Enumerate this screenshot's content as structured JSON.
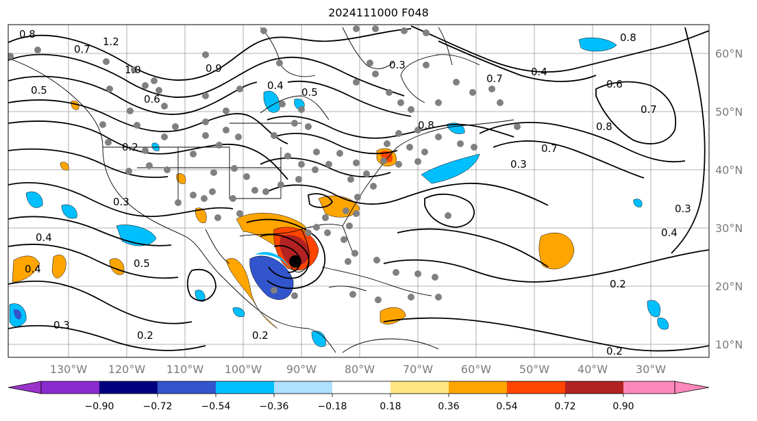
{
  "title": "2024111000 F048",
  "longitude_labels": [
    "130°W",
    "120°W",
    "110°W",
    "100°W",
    "90°W",
    "80°W",
    "70°W",
    "60°W",
    "50°W",
    "40°W",
    "30°W"
  ],
  "latitude_labels": [
    "60°N",
    "50°N",
    "40°N",
    "30°N",
    "20°N",
    "10°N"
  ],
  "colorbar": {
    "ticks": [
      "−0.90",
      "−0.72",
      "−0.54",
      "−0.36",
      "−0.18",
      "0.18",
      "0.36",
      "0.54",
      "0.72",
      "0.90"
    ],
    "colors": {
      "under": "#9a33cc",
      "bins": [
        "#8a2bd0",
        "#00007f",
        "#3355cc",
        "#00bfff",
        "#aee0ff",
        "#ffffff",
        "#ffe680",
        "#ffa500",
        "#ff4500",
        "#b22222"
      ],
      "over": "#ff88bb"
    }
  },
  "contour_labels": [
    "0.8",
    "1.2",
    "0.7",
    "1.0",
    "0.5",
    "0.9",
    "0.6",
    "0.4",
    "0.3",
    "0.2",
    "0.8",
    "0.7",
    "0.4",
    "0.6",
    "0.8",
    "0.7",
    "0.3",
    "0.5",
    "0.3",
    "0.4",
    "0.5",
    "0.4",
    "0.2",
    "0.3",
    "0.2",
    "0.2",
    "0.2",
    "0.4",
    "0.7",
    "0.8",
    "0.3"
  ],
  "marker": {
    "label": "storm-center"
  }
}
